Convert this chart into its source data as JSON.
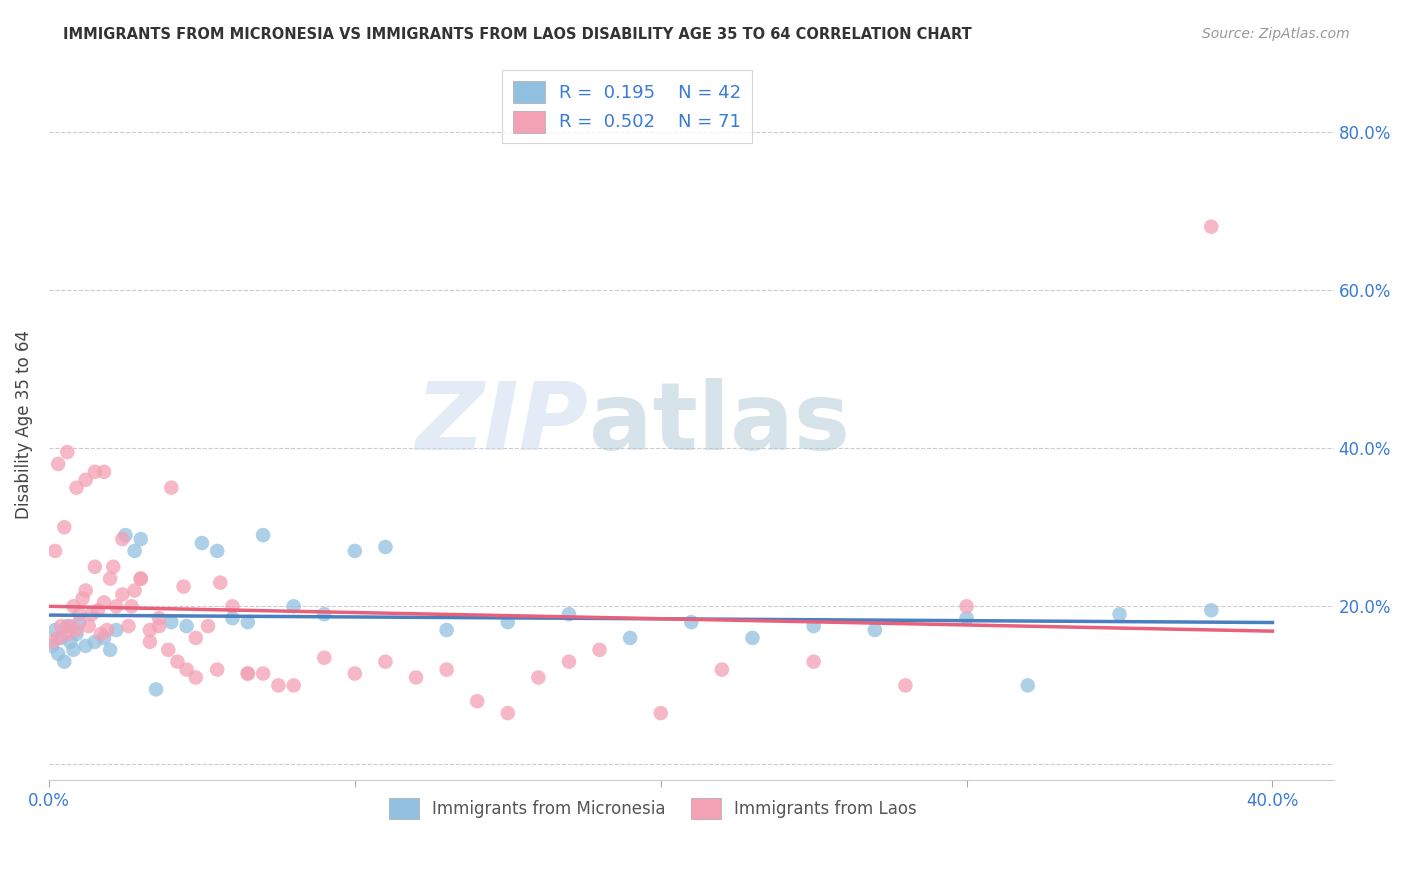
{
  "title": "IMMIGRANTS FROM MICRONESIA VS IMMIGRANTS FROM LAOS DISABILITY AGE 35 TO 64 CORRELATION CHART",
  "source": "Source: ZipAtlas.com",
  "ylabel": "Disability Age 35 to 64",
  "xlim": [
    0.0,
    0.42
  ],
  "ylim": [
    -0.02,
    0.88
  ],
  "yticks": [
    0.0,
    0.2,
    0.4,
    0.6,
    0.8
  ],
  "xticks": [
    0.0,
    0.1,
    0.2,
    0.3,
    0.4
  ],
  "xtick_labels": [
    "0.0%",
    "",
    "",
    "",
    "40.0%"
  ],
  "ytick_labels_right": [
    "",
    "20.0%",
    "40.0%",
    "60.0%",
    "80.0%"
  ],
  "micronesia_color": "#92c0e0",
  "laos_color": "#f4a0b5",
  "micronesia_line_color": "#4a7fc0",
  "laos_line_color": "#e8607a",
  "R_micronesia": 0.195,
  "N_micronesia": 42,
  "R_laos": 0.502,
  "N_laos": 71,
  "watermark_zip": "ZIP",
  "watermark_atlas": "atlas",
  "legend_label_micronesia": "Immigrants from Micronesia",
  "legend_label_laos": "Immigrants from Laos",
  "micronesia_x": [
    0.001,
    0.002,
    0.003,
    0.004,
    0.005,
    0.006,
    0.007,
    0.008,
    0.009,
    0.01,
    0.012,
    0.015,
    0.018,
    0.02,
    0.022,
    0.025,
    0.028,
    0.03,
    0.035,
    0.04,
    0.045,
    0.05,
    0.055,
    0.06,
    0.065,
    0.07,
    0.08,
    0.09,
    0.1,
    0.11,
    0.13,
    0.15,
    0.17,
    0.19,
    0.21,
    0.23,
    0.25,
    0.27,
    0.3,
    0.32,
    0.35,
    0.38
  ],
  "micronesia_y": [
    0.15,
    0.17,
    0.14,
    0.16,
    0.13,
    0.175,
    0.155,
    0.145,
    0.165,
    0.18,
    0.15,
    0.155,
    0.16,
    0.145,
    0.17,
    0.29,
    0.27,
    0.285,
    0.095,
    0.18,
    0.175,
    0.28,
    0.27,
    0.185,
    0.18,
    0.29,
    0.2,
    0.19,
    0.27,
    0.275,
    0.17,
    0.18,
    0.19,
    0.16,
    0.18,
    0.16,
    0.175,
    0.17,
    0.185,
    0.1,
    0.19,
    0.195
  ],
  "laos_x": [
    0.001,
    0.002,
    0.003,
    0.004,
    0.005,
    0.006,
    0.007,
    0.008,
    0.009,
    0.01,
    0.011,
    0.012,
    0.013,
    0.014,
    0.015,
    0.016,
    0.017,
    0.018,
    0.019,
    0.02,
    0.022,
    0.024,
    0.026,
    0.028,
    0.03,
    0.033,
    0.036,
    0.04,
    0.044,
    0.048,
    0.052,
    0.056,
    0.06,
    0.065,
    0.07,
    0.08,
    0.09,
    0.1,
    0.11,
    0.12,
    0.13,
    0.14,
    0.15,
    0.16,
    0.17,
    0.18,
    0.2,
    0.22,
    0.25,
    0.28,
    0.003,
    0.006,
    0.009,
    0.012,
    0.015,
    0.018,
    0.021,
    0.024,
    0.027,
    0.03,
    0.033,
    0.036,
    0.039,
    0.042,
    0.045,
    0.048,
    0.055,
    0.065,
    0.075,
    0.3,
    0.38
  ],
  "laos_y": [
    0.155,
    0.27,
    0.16,
    0.175,
    0.3,
    0.165,
    0.175,
    0.2,
    0.17,
    0.19,
    0.21,
    0.22,
    0.175,
    0.19,
    0.25,
    0.195,
    0.165,
    0.205,
    0.17,
    0.235,
    0.2,
    0.215,
    0.175,
    0.22,
    0.235,
    0.17,
    0.185,
    0.35,
    0.225,
    0.16,
    0.175,
    0.23,
    0.2,
    0.115,
    0.115,
    0.1,
    0.135,
    0.115,
    0.13,
    0.11,
    0.12,
    0.08,
    0.065,
    0.11,
    0.13,
    0.145,
    0.065,
    0.12,
    0.13,
    0.1,
    0.38,
    0.395,
    0.35,
    0.36,
    0.37,
    0.37,
    0.25,
    0.285,
    0.2,
    0.235,
    0.155,
    0.175,
    0.145,
    0.13,
    0.12,
    0.11,
    0.12,
    0.115,
    0.1,
    0.2,
    0.68
  ]
}
